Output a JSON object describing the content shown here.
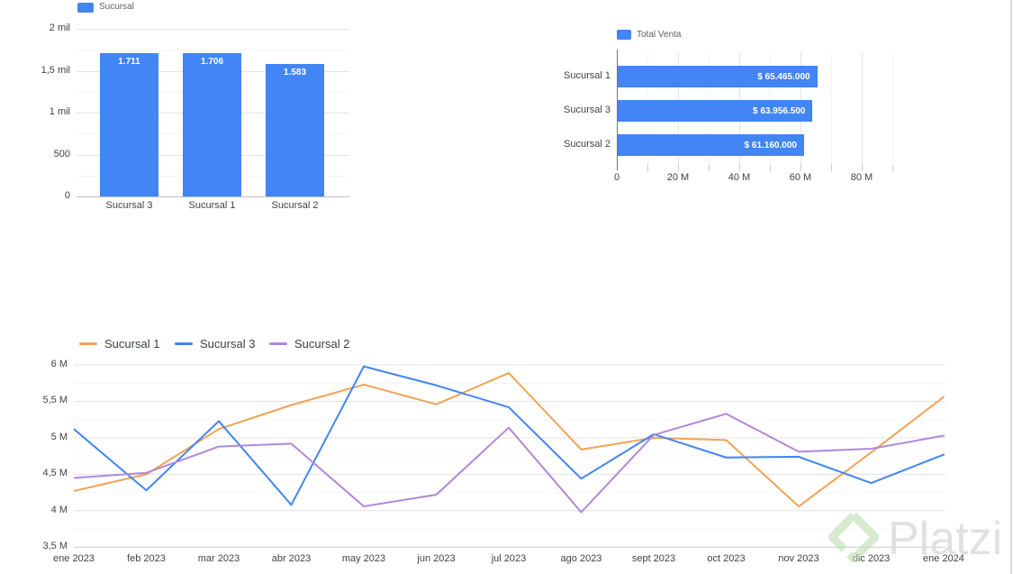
{
  "watermark": {
    "brand": "Platzi",
    "logo_color": "#bcdfb0",
    "text_color": "#dcdcdc"
  },
  "chart_data": [
    {
      "id": "column-chart-sucursal",
      "type": "bar",
      "legend": {
        "label": "Sucursal",
        "color": "#4285f4"
      },
      "categories": [
        "Sucursal 3",
        "Sucursal 1",
        "Sucursal 2"
      ],
      "values": [
        1711,
        1706,
        1583
      ],
      "value_labels": [
        "1.711",
        "1.706",
        "1.583"
      ],
      "bar_color": "#4285f4",
      "y_axis": {
        "ticks": [
          "0",
          "500",
          "1 mil",
          "1,5 mil",
          "2 mil"
        ],
        "min": 0,
        "max": 2000,
        "major_step": 500,
        "minor_step": 250
      },
      "grid": true,
      "legend_position": "top"
    },
    {
      "id": "bar-chart-total-venta",
      "type": "bar",
      "orientation": "horizontal",
      "legend": {
        "label": "Total Venta",
        "color": "#4285f4"
      },
      "categories": [
        "Sucursal 1",
        "Sucursal 3",
        "Sucursal 2"
      ],
      "values": [
        65465000,
        63956500,
        61160000
      ],
      "value_labels": [
        "$ 65.465.000",
        "$ 63.956.500",
        "$ 61.160.000"
      ],
      "bar_color": "#4285f4",
      "x_axis": {
        "ticks": [
          "0",
          "20 M",
          "40 M",
          "60 M",
          "80 M"
        ],
        "min": 0,
        "max": 80000000,
        "major_step": 20000000,
        "minor_step": 10000000
      },
      "grid": true,
      "legend_position": "top"
    },
    {
      "id": "line-chart-ventas-mensuales",
      "type": "line",
      "x": [
        "ene 2023",
        "feb 2023",
        "mar 2023",
        "abr 2023",
        "may 2023",
        "jun 2023",
        "jul 2023",
        "ago 2023",
        "sept 2023",
        "oct 2023",
        "nov 2023",
        "dic 2023",
        "ene 2024"
      ],
      "series": [
        {
          "name": "Sucursal 1",
          "color": "#f0a355",
          "values": [
            4.27,
            4.5,
            5.12,
            5.45,
            5.73,
            5.46,
            5.89,
            4.84,
            5.0,
            4.97,
            4.06,
            4.8,
            5.56
          ]
        },
        {
          "name": "Sucursal 3",
          "color": "#4285f4",
          "values": [
            5.12,
            4.28,
            5.23,
            4.08,
            5.98,
            5.72,
            5.42,
            4.44,
            5.05,
            4.73,
            4.74,
            4.38,
            4.77
          ]
        },
        {
          "name": "Sucursal 2",
          "color": "#b088d8",
          "values": [
            4.45,
            4.52,
            4.88,
            4.92,
            4.06,
            4.22,
            5.14,
            3.98,
            5.04,
            5.33,
            4.81,
            4.85,
            5.03
          ]
        }
      ],
      "y_axis": {
        "ticks": [
          "3,5 M",
          "4 M",
          "4,5 M",
          "5 M",
          "5,5 M",
          "6 M"
        ],
        "min": 3.5,
        "max": 6.0,
        "major_step": 0.5,
        "minor_step": 0.25,
        "unit": "M"
      },
      "grid": true,
      "legend_position": "top-left"
    }
  ]
}
